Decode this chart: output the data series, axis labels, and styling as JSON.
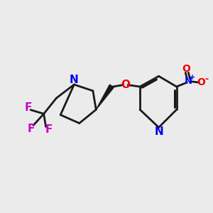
{
  "background_color": "#ebebeb",
  "bond_color": "#1a1a1a",
  "N_color": "#0000ee",
  "O_color": "#ee0000",
  "F_color": "#cc00cc",
  "line_width": 2.2,
  "wedge_color": "#1a1a1a",
  "figsize": [
    3.0,
    3.0
  ],
  "dpi": 100,
  "xlim": [
    0,
    10
  ],
  "ylim": [
    0,
    10
  ]
}
